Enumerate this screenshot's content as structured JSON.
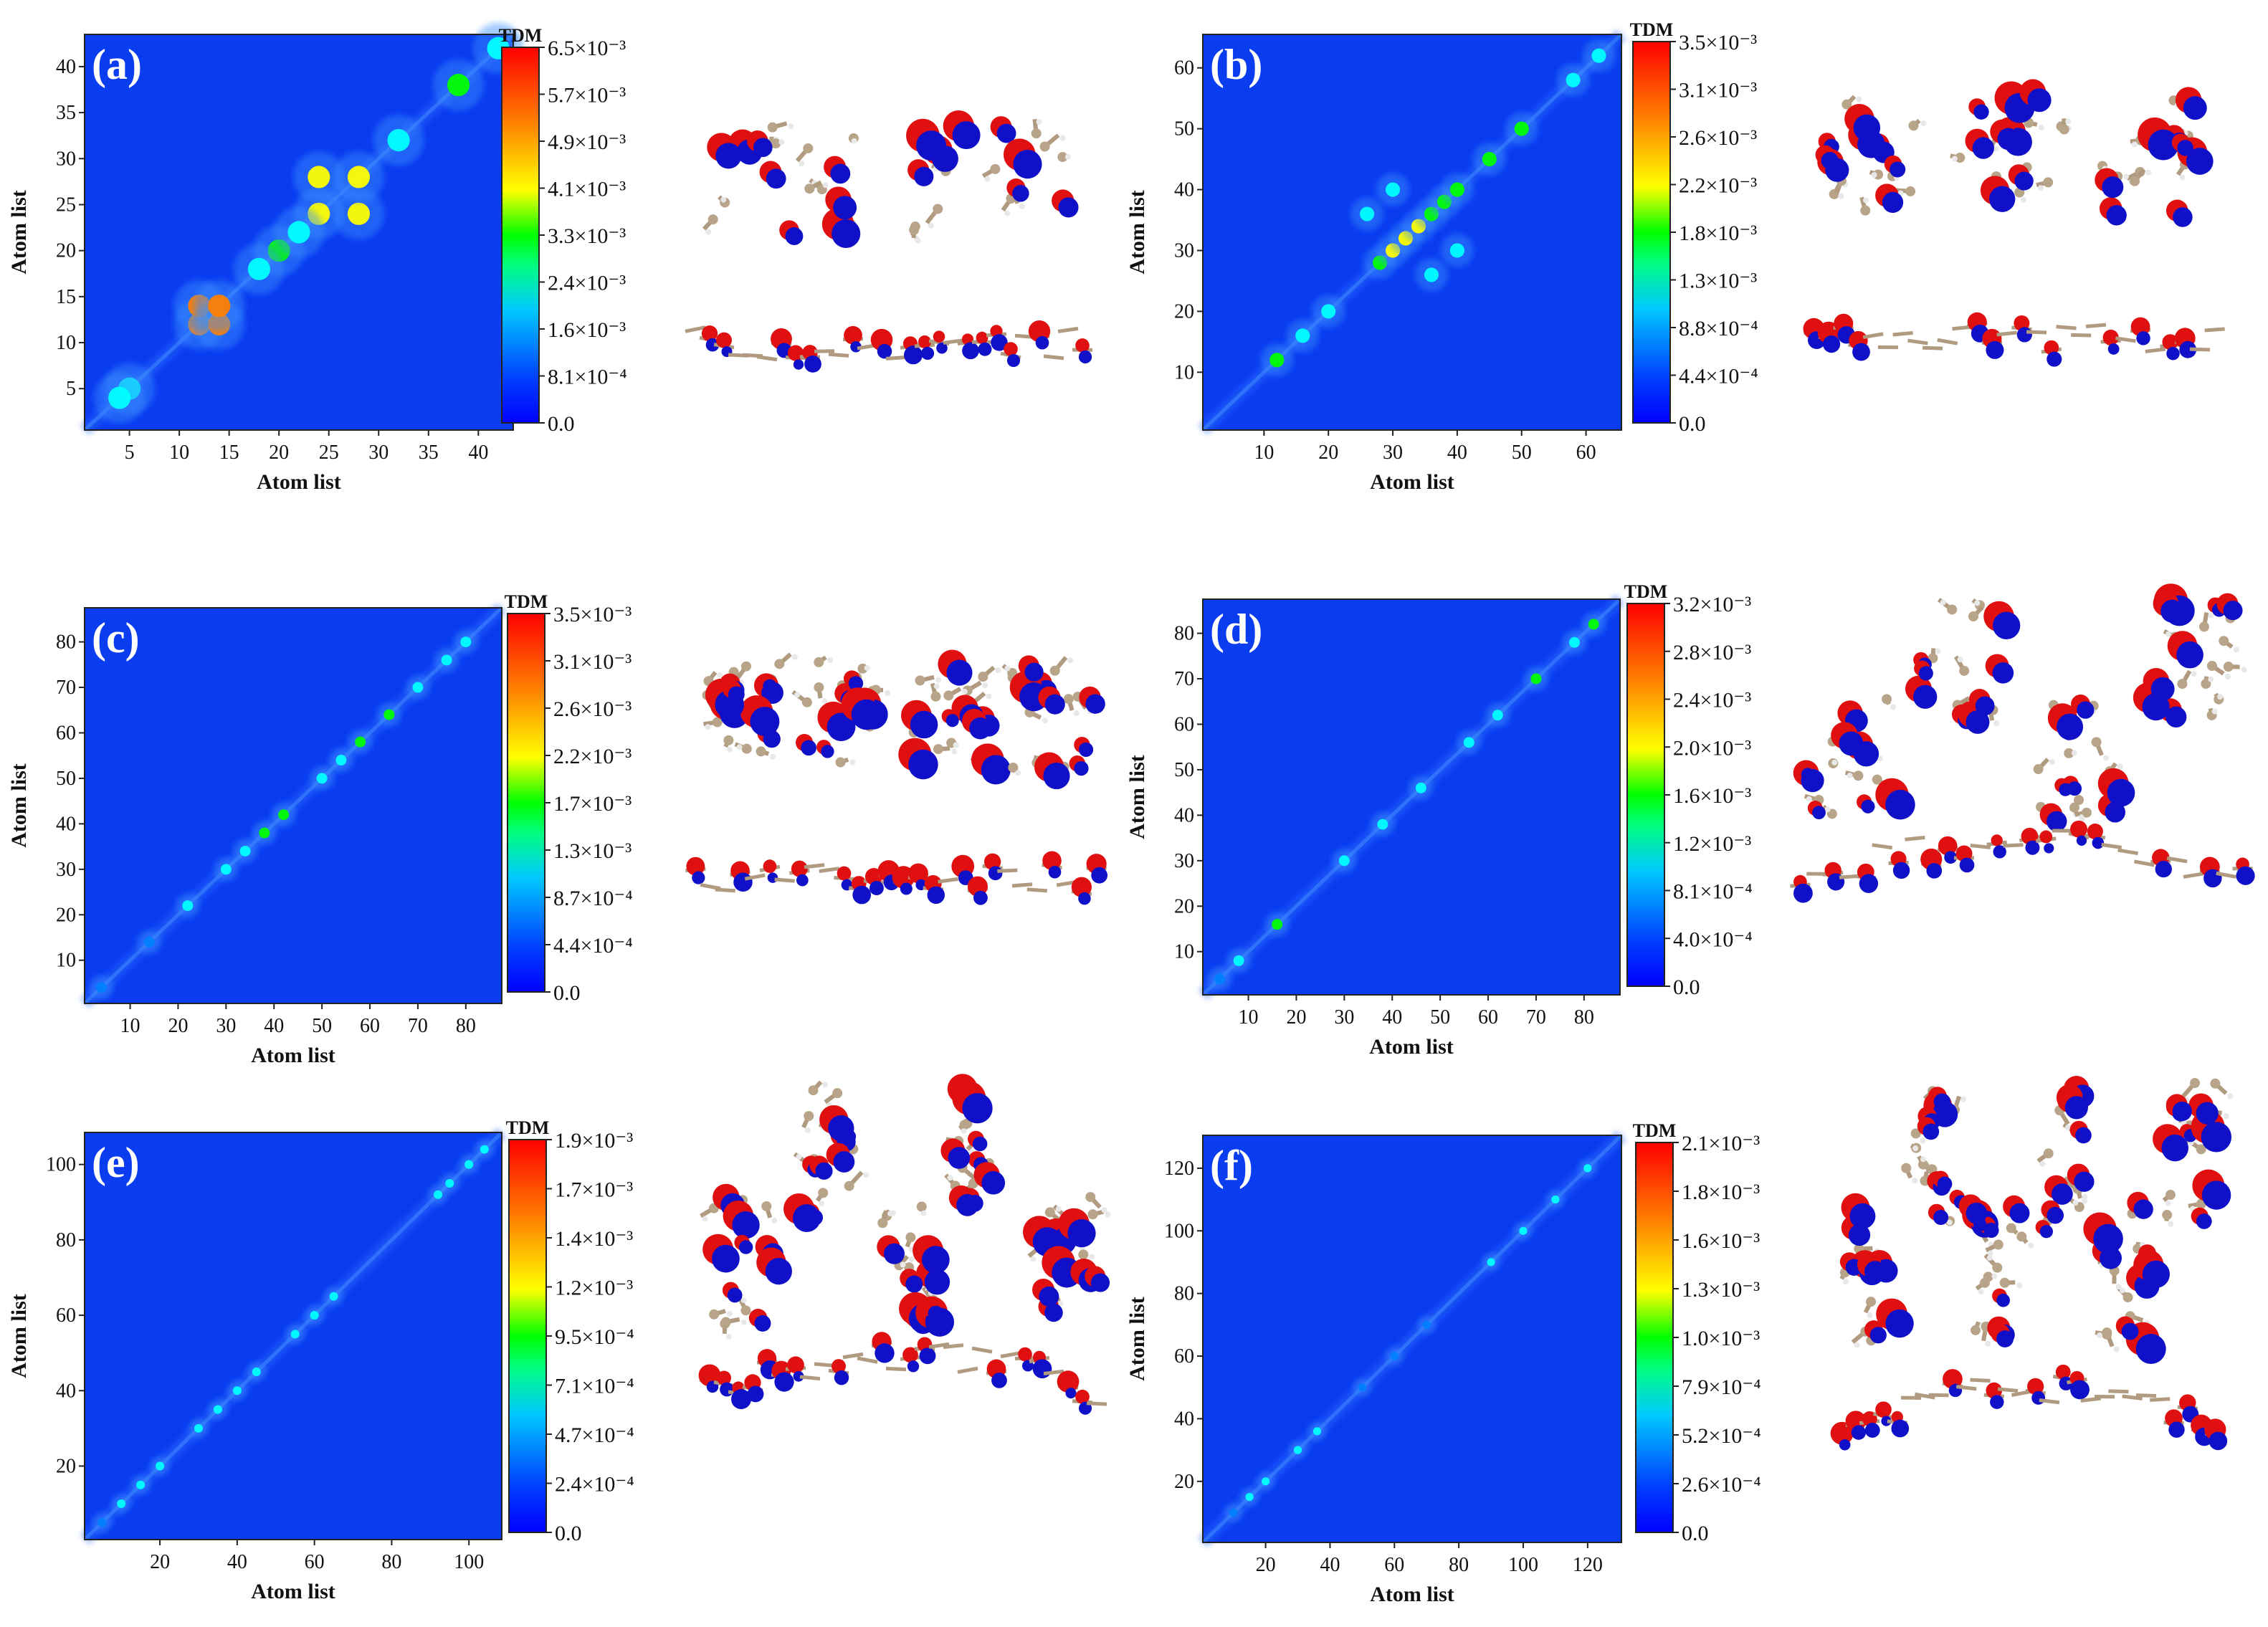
{
  "figure": {
    "colormap": [
      "#0000ff",
      "#0080ff",
      "#00ffff",
      "#00ff00",
      "#ffff00",
      "#ff8000",
      "#ff0000"
    ],
    "background_color": "#0a3cf0"
  },
  "chart_data": [
    {
      "type": "heatmap",
      "panel_label": "(a)",
      "xlabel": "Atom list",
      "ylabel": "Atom list",
      "n_atoms": 43,
      "xticks": [
        5,
        10,
        15,
        20,
        25,
        30,
        35,
        40
      ],
      "yticks": [
        5,
        10,
        15,
        20,
        25,
        30,
        35,
        40
      ],
      "colorbar": {
        "title": "TDM",
        "labels": [
          "6.5×10⁻³",
          "5.7×10⁻³",
          "4.9×10⁻³",
          "4.1×10⁻³",
          "3.3×10⁻³",
          "2.4×10⁻³",
          "1.6×10⁻³",
          "8.1×10⁻⁴",
          "0.0"
        ],
        "range": [
          0.0,
          0.0065
        ]
      },
      "hotspots": [
        [
          12,
          12,
          0.7
        ],
        [
          12,
          14,
          0.7
        ],
        [
          14,
          12,
          0.7
        ],
        [
          14,
          14,
          0.7
        ],
        [
          24,
          24,
          0.6
        ],
        [
          24,
          28,
          0.6
        ],
        [
          28,
          24,
          0.6
        ],
        [
          28,
          28,
          0.6
        ],
        [
          20,
          20,
          0.4
        ],
        [
          22,
          22,
          0.35
        ],
        [
          5,
          5,
          0.3
        ],
        [
          18,
          18,
          0.35
        ],
        [
          38,
          38,
          0.4
        ],
        [
          32,
          32,
          0.35
        ],
        [
          42,
          42,
          0.3
        ],
        [
          4,
          4,
          0.25
        ]
      ],
      "molecule_image": "charge-density-isosurface"
    },
    {
      "type": "heatmap",
      "panel_label": "(b)",
      "xlabel": "Atom list",
      "ylabel": "Atom list",
      "n_atoms": 65,
      "xticks": [
        10,
        20,
        30,
        40,
        50,
        60
      ],
      "yticks": [
        10,
        20,
        30,
        40,
        50,
        60
      ],
      "colorbar": {
        "title": "TDM",
        "labels": [
          "3.5×10⁻³",
          "3.1×10⁻³",
          "2.6×10⁻³",
          "2.2×10⁻³",
          "1.8×10⁻³",
          "1.3×10⁻³",
          "8.8×10⁻⁴",
          "4.4×10⁻⁴",
          "0.0"
        ],
        "range": [
          0.0,
          0.0035
        ]
      },
      "hotspots": [
        [
          28,
          28,
          0.5
        ],
        [
          30,
          30,
          0.55
        ],
        [
          32,
          32,
          0.6
        ],
        [
          34,
          34,
          0.55
        ],
        [
          36,
          36,
          0.5
        ],
        [
          38,
          38,
          0.5
        ],
        [
          40,
          40,
          0.45
        ],
        [
          12,
          12,
          0.45
        ],
        [
          45,
          45,
          0.45
        ],
        [
          50,
          50,
          0.4
        ],
        [
          26,
          36,
          0.35
        ],
        [
          36,
          26,
          0.35
        ],
        [
          30,
          40,
          0.3
        ],
        [
          40,
          30,
          0.3
        ],
        [
          58,
          58,
          0.3
        ],
        [
          62,
          62,
          0.3
        ],
        [
          16,
          16,
          0.3
        ],
        [
          20,
          20,
          0.3
        ]
      ],
      "molecule_image": "charge-density-isosurface"
    },
    {
      "type": "heatmap",
      "panel_label": "(c)",
      "xlabel": "Atom list",
      "ylabel": "Atom list",
      "n_atoms": 87,
      "xticks": [
        10,
        20,
        30,
        40,
        50,
        60,
        70,
        80
      ],
      "yticks": [
        10,
        20,
        30,
        40,
        50,
        60,
        70,
        80
      ],
      "colorbar": {
        "title": "TDM",
        "labels": [
          "3.5×10⁻³",
          "3.1×10⁻³",
          "2.6×10⁻³",
          "2.2×10⁻³",
          "1.7×10⁻³",
          "1.3×10⁻³",
          "8.7×10⁻⁴",
          "4.4×10⁻⁴",
          "0.0"
        ],
        "range": [
          0.0,
          0.0035
        ]
      },
      "hotspots": [
        [
          38,
          38,
          0.5
        ],
        [
          42,
          42,
          0.45
        ],
        [
          58,
          58,
          0.5
        ],
        [
          64,
          64,
          0.45
        ],
        [
          30,
          30,
          0.35
        ],
        [
          34,
          34,
          0.35
        ],
        [
          50,
          50,
          0.35
        ],
        [
          54,
          54,
          0.35
        ],
        [
          22,
          22,
          0.3
        ],
        [
          14,
          14,
          0.2
        ],
        [
          4,
          4,
          0.2
        ],
        [
          80,
          80,
          0.3
        ],
        [
          76,
          76,
          0.25
        ],
        [
          70,
          70,
          0.25
        ]
      ],
      "molecule_image": "charge-density-isosurface"
    },
    {
      "type": "heatmap",
      "panel_label": "(d)",
      "xlabel": "Atom list",
      "ylabel": "Atom list",
      "n_atoms": 87,
      "xticks": [
        10,
        20,
        30,
        40,
        50,
        60,
        70,
        80
      ],
      "yticks": [
        10,
        20,
        30,
        40,
        50,
        60,
        70,
        80
      ],
      "colorbar": {
        "title": "TDM",
        "labels": [
          "3.2×10⁻³",
          "2.8×10⁻³",
          "2.4×10⁻³",
          "2.0×10⁻³",
          "1.6×10⁻³",
          "1.2×10⁻³",
          "8.1×10⁻⁴",
          "4.0×10⁻⁴",
          "0.0"
        ],
        "range": [
          0.0,
          0.0032
        ]
      },
      "hotspots": [
        [
          16,
          16,
          0.5
        ],
        [
          70,
          70,
          0.45
        ],
        [
          82,
          82,
          0.45
        ],
        [
          78,
          78,
          0.3
        ],
        [
          38,
          38,
          0.3
        ],
        [
          30,
          30,
          0.25
        ],
        [
          46,
          46,
          0.25
        ],
        [
          56,
          56,
          0.25
        ],
        [
          62,
          62,
          0.25
        ],
        [
          8,
          8,
          0.25
        ],
        [
          4,
          4,
          0.2
        ]
      ],
      "molecule_image": "charge-density-isosurface"
    },
    {
      "type": "heatmap",
      "panel_label": "(e)",
      "xlabel": "Atom list",
      "ylabel": "Atom list",
      "n_atoms": 108,
      "xticks": [
        20,
        40,
        60,
        80,
        100
      ],
      "yticks": [
        20,
        40,
        60,
        80,
        100
      ],
      "colorbar": {
        "title": "TDM",
        "labels": [
          "1.9×10⁻³",
          "1.7×10⁻³",
          "1.4×10⁻³",
          "1.2×10⁻³",
          "9.5×10⁻⁴",
          "7.1×10⁻⁴",
          "4.7×10⁻⁴",
          "2.4×10⁻⁴",
          "0.0"
        ],
        "range": [
          0.0,
          0.0019
        ]
      },
      "hotspots": [
        [
          45,
          45,
          0.35
        ],
        [
          40,
          40,
          0.3
        ],
        [
          35,
          35,
          0.3
        ],
        [
          30,
          30,
          0.25
        ],
        [
          55,
          55,
          0.3
        ],
        [
          60,
          60,
          0.3
        ],
        [
          65,
          65,
          0.25
        ],
        [
          10,
          10,
          0.25
        ],
        [
          15,
          15,
          0.25
        ],
        [
          20,
          20,
          0.25
        ],
        [
          95,
          95,
          0.3
        ],
        [
          100,
          100,
          0.35
        ],
        [
          104,
          104,
          0.3
        ],
        [
          92,
          92,
          0.25
        ],
        [
          5,
          5,
          0.2
        ]
      ],
      "molecule_image": "charge-density-isosurface"
    },
    {
      "type": "heatmap",
      "panel_label": "(f)",
      "xlabel": "Atom list",
      "ylabel": "Atom list",
      "n_atoms": 130,
      "xticks": [
        20,
        40,
        60,
        80,
        100,
        120
      ],
      "yticks": [
        20,
        40,
        60,
        80,
        100,
        120
      ],
      "colorbar": {
        "title": "TDM",
        "labels": [
          "2.1×10⁻³",
          "1.8×10⁻³",
          "1.6×10⁻³",
          "1.3×10⁻³",
          "1.0×10⁻³",
          "7.9×10⁻⁴",
          "5.2×10⁻⁴",
          "2.6×10⁻⁴",
          "0.0"
        ],
        "range": [
          0.0,
          0.0021
        ]
      },
      "hotspots": [
        [
          36,
          36,
          0.35
        ],
        [
          30,
          30,
          0.3
        ],
        [
          20,
          20,
          0.25
        ],
        [
          15,
          15,
          0.25
        ],
        [
          10,
          10,
          0.2
        ],
        [
          100,
          100,
          0.3
        ],
        [
          110,
          110,
          0.3
        ],
        [
          120,
          120,
          0.3
        ],
        [
          90,
          90,
          0.25
        ],
        [
          70,
          70,
          0.2
        ],
        [
          60,
          60,
          0.2
        ],
        [
          50,
          50,
          0.2
        ]
      ],
      "molecule_image": "charge-density-isosurface"
    }
  ]
}
